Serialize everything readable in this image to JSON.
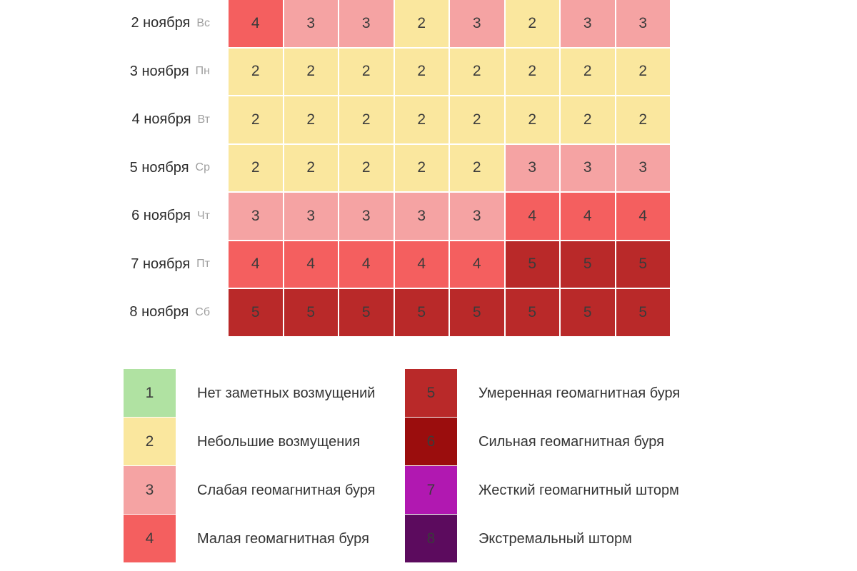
{
  "palette": {
    "levels": {
      "1": "#b0e2a2",
      "2": "#fae79e",
      "3": "#f5a3a3",
      "4": "#f45f5f",
      "5": "#b92929",
      "6": "#9b0d0d",
      "7": "#b118b1",
      "8": "#5c0b5e"
    },
    "cell_number_color": "#3b3b3b",
    "date_color": "#2b2b2b",
    "day_abbr_color": "#9e9e9e",
    "background": "#ffffff"
  },
  "chart_data": {
    "type": "heatmap",
    "rows": [
      {
        "date": "2 ноября",
        "day": "Вс"
      },
      {
        "date": "3 ноября",
        "day": "Пн"
      },
      {
        "date": "4 ноября",
        "day": "Вт"
      },
      {
        "date": "5 ноября",
        "day": "Ср"
      },
      {
        "date": "6 ноября",
        "day": "Чт"
      },
      {
        "date": "7 ноября",
        "day": "Пт"
      },
      {
        "date": "8 ноября",
        "day": "Сб"
      }
    ],
    "column_count": 8,
    "values": [
      [
        4,
        3,
        3,
        2,
        3,
        2,
        3,
        3
      ],
      [
        2,
        2,
        2,
        2,
        2,
        2,
        2,
        2
      ],
      [
        2,
        2,
        2,
        2,
        2,
        2,
        2,
        2
      ],
      [
        2,
        2,
        2,
        2,
        2,
        3,
        3,
        3
      ],
      [
        3,
        3,
        3,
        3,
        3,
        4,
        4,
        4
      ],
      [
        4,
        4,
        4,
        4,
        4,
        5,
        5,
        5
      ],
      [
        5,
        5,
        5,
        5,
        5,
        5,
        5,
        5
      ]
    ],
    "value_range": [
      1,
      8
    ],
    "legend_position": "bottom",
    "legend": [
      {
        "level": "1",
        "label": "Нет заметных возмущений"
      },
      {
        "level": "2",
        "label": "Небольшие возмущения"
      },
      {
        "level": "3",
        "label": "Слабая геомагнитная буря"
      },
      {
        "level": "4",
        "label": "Малая геомагнитная буря"
      },
      {
        "level": "5",
        "label": "Умеренная геомагнитная буря"
      },
      {
        "level": "6",
        "label": "Сильная геомагнитная буря"
      },
      {
        "level": "7",
        "label": "Жесткий геомагнитный шторм"
      },
      {
        "level": "8",
        "label": "Экстремальный шторм"
      }
    ]
  },
  "legend_columns": {
    "left": [
      "1",
      "2",
      "3",
      "4"
    ],
    "right": [
      "5",
      "6",
      "7",
      "8"
    ]
  }
}
